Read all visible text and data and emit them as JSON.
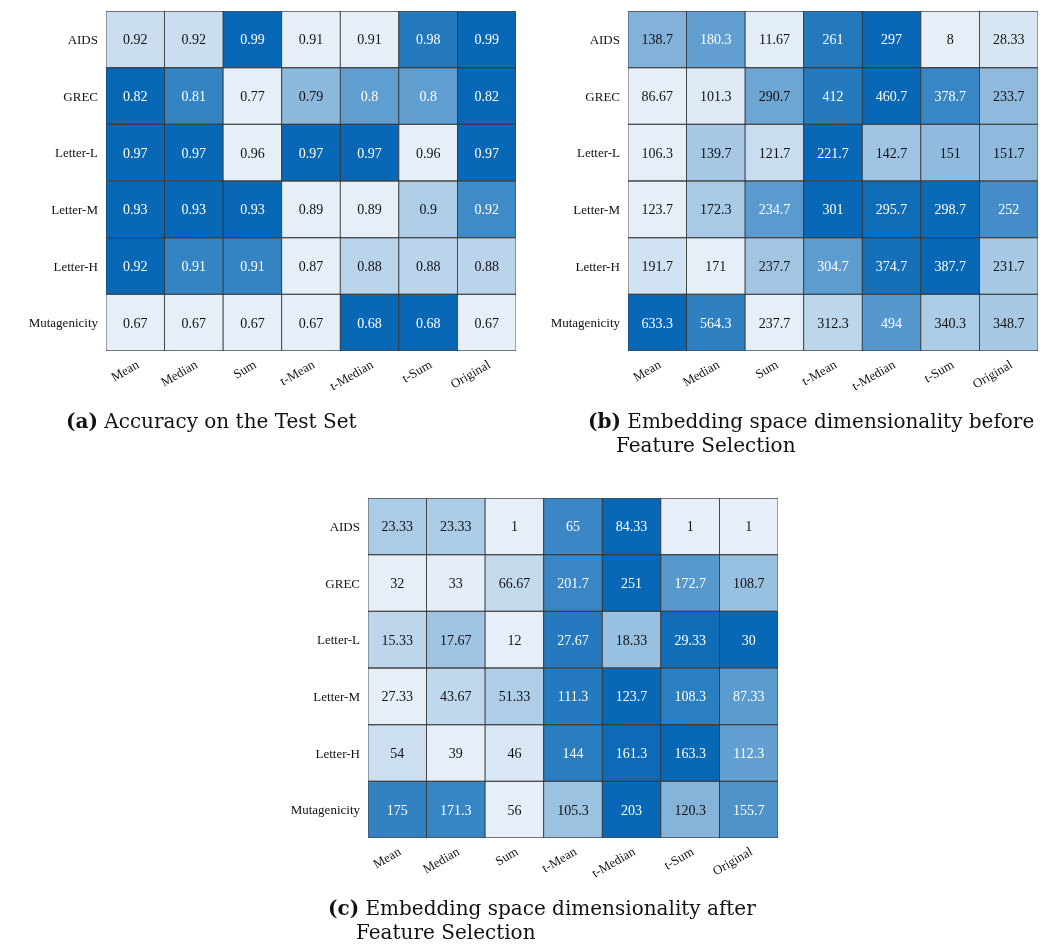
{
  "chart_data": [
    {
      "type": "heatmap",
      "title": "(a) Accuracy on the Test Set",
      "data_labels": true,
      "categories": [
        "Mean",
        "Median",
        "Sum",
        "t-Mean",
        "t-Median",
        "t-Sum",
        "Original"
      ],
      "y_categories": [
        "AIDS",
        "GREC",
        "Letter-L",
        "Letter-M",
        "Letter-H",
        "Mutagenicity"
      ],
      "cells": [
        [
          0.92,
          0.92,
          0.99,
          0.91,
          0.91,
          0.98,
          0.99
        ],
        [
          0.82,
          0.81,
          0.77,
          0.79,
          0.8,
          0.8,
          0.82
        ],
        [
          0.97,
          0.97,
          0.96,
          0.97,
          0.97,
          0.96,
          0.97
        ],
        [
          0.93,
          0.93,
          0.93,
          0.89,
          0.89,
          0.9,
          0.92
        ],
        [
          0.92,
          0.91,
          0.91,
          0.87,
          0.88,
          0.88,
          0.88
        ],
        [
          0.67,
          0.67,
          0.67,
          0.67,
          0.68,
          0.68,
          0.67
        ]
      ]
    },
    {
      "type": "heatmap",
      "title": "(b) Embedding space dimensionality before Feature Selection",
      "data_labels": true,
      "categories": [
        "Mean",
        "Median",
        "Sum",
        "t-Mean",
        "t-Median",
        "t-Sum",
        "Original"
      ],
      "y_categories": [
        "AIDS",
        "GREC",
        "Letter-L",
        "Letter-M",
        "Letter-H",
        "Mutagenicity"
      ],
      "cells": [
        [
          138.7,
          180.3,
          11.67,
          261,
          297,
          8,
          28.33
        ],
        [
          86.67,
          101.3,
          290.7,
          412,
          460.7,
          378.7,
          233.7
        ],
        [
          106.3,
          139.7,
          121.7,
          221.7,
          142.7,
          151,
          151.7
        ],
        [
          123.7,
          172.3,
          234.7,
          301,
          295.7,
          298.7,
          252
        ],
        [
          191.7,
          171,
          237.7,
          304.7,
          374.7,
          387.7,
          231.7
        ],
        [
          633.3,
          564.3,
          237.7,
          312.3,
          494,
          340.3,
          348.7
        ]
      ]
    },
    {
      "type": "heatmap",
      "title": "(c) Embedding space dimensionality after Feature Selection",
      "data_labels": true,
      "categories": [
        "Mean",
        "Median",
        "Sum",
        "t-Mean",
        "t-Median",
        "t-Sum",
        "Original"
      ],
      "y_categories": [
        "AIDS",
        "GREC",
        "Letter-L",
        "Letter-M",
        "Letter-H",
        "Mutagenicity"
      ],
      "cells": [
        [
          23.33,
          23.33,
          1,
          65,
          84.33,
          1,
          1
        ],
        [
          32,
          33,
          66.67,
          201.7,
          251,
          172.7,
          108.7
        ],
        [
          15.33,
          17.67,
          12,
          27.67,
          18.33,
          29.33,
          30
        ],
        [
          27.33,
          43.67,
          51.33,
          111.3,
          123.7,
          108.3,
          87.33
        ],
        [
          54,
          39,
          46,
          144,
          161.3,
          163.3,
          112.3
        ],
        [
          175,
          171.3,
          56,
          105.3,
          203,
          120.3,
          155.7
        ]
      ]
    }
  ]
}
